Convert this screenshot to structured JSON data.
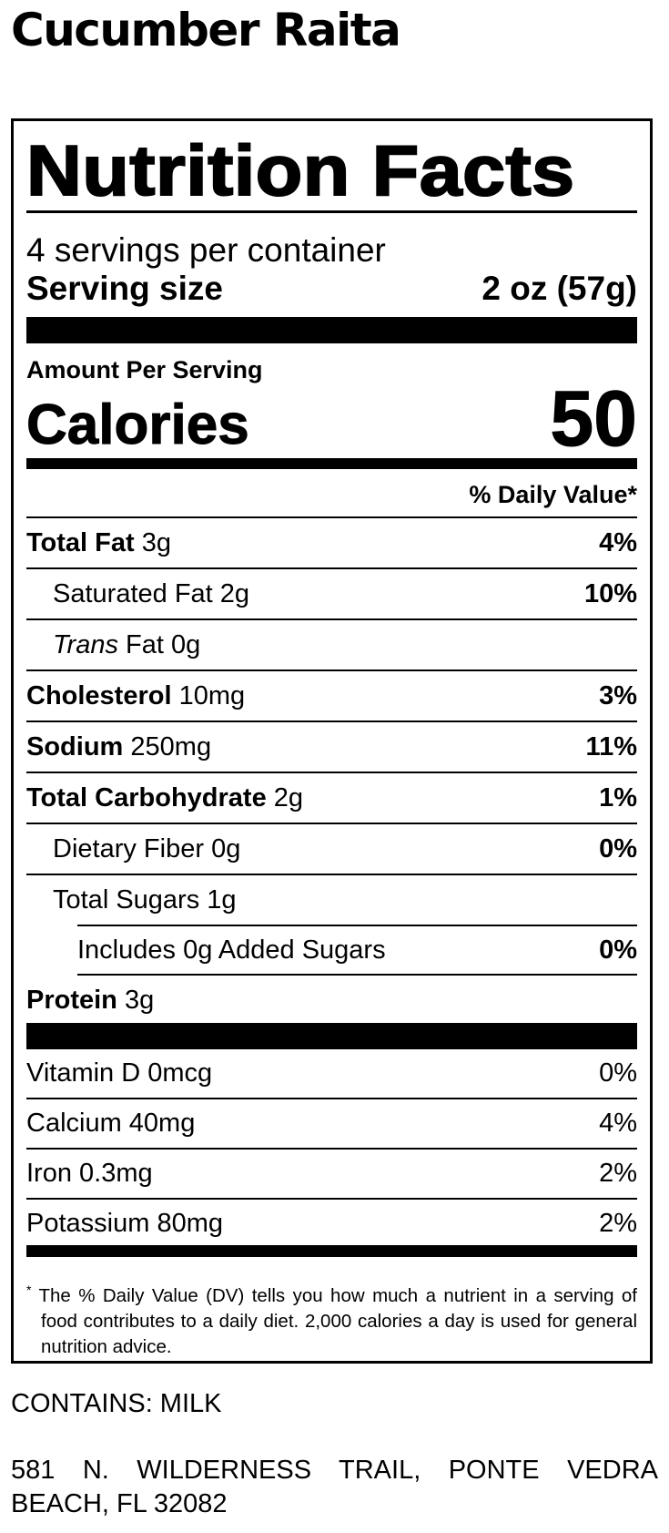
{
  "title": "Cucumber Raita",
  "label": {
    "heading": "Nutrition Facts",
    "servings_per_container": "4 servings per container",
    "serving_size_label": "Serving size",
    "serving_size_value": "2 oz (57g)",
    "amount_per_serving": "Amount Per Serving",
    "calories_label": "Calories",
    "calories_value": "50",
    "daily_value_header": "% Daily Value*",
    "nutrients": [
      {
        "name": "Total Fat",
        "amount": "3g",
        "dv": "4%"
      },
      {
        "name": "Saturated Fat",
        "amount": "2g",
        "dv": "10%"
      },
      {
        "name": "Trans",
        "name_suffix": "Fat",
        "amount": "0g",
        "dv": ""
      },
      {
        "name": "Cholesterol",
        "amount": "10mg",
        "dv": "3%"
      },
      {
        "name": "Sodium",
        "amount": "250mg",
        "dv": "11%"
      },
      {
        "name": "Total Carbohydrate",
        "amount": "2g",
        "dv": "1%"
      },
      {
        "name": "Dietary Fiber",
        "amount": "0g",
        "dv": "0%"
      },
      {
        "name": "Total Sugars",
        "amount": "1g",
        "dv": ""
      },
      {
        "name": "Includes 0g Added Sugars",
        "amount": "",
        "dv": "0%"
      },
      {
        "name": "Protein",
        "amount": "3g",
        "dv": ""
      }
    ],
    "vitamins": [
      {
        "name": "Vitamin D 0mcg",
        "dv": "0%"
      },
      {
        "name": "Calcium 40mg",
        "dv": "4%"
      },
      {
        "name": "Iron 0.3mg",
        "dv": "2%"
      },
      {
        "name": "Potassium 80mg",
        "dv": "2%"
      }
    ],
    "footnote_mark": "*",
    "footnote": "The % Daily Value (DV) tells you how much a nutrient in a serving of food contributes to a daily diet. 2,000 calories a day is used for general nutrition advice."
  },
  "contains": "CONTAINS: MILK",
  "address": "581 N. WILDERNESS TRAIL, PONTE VEDRA BEACH, FL 32082"
}
